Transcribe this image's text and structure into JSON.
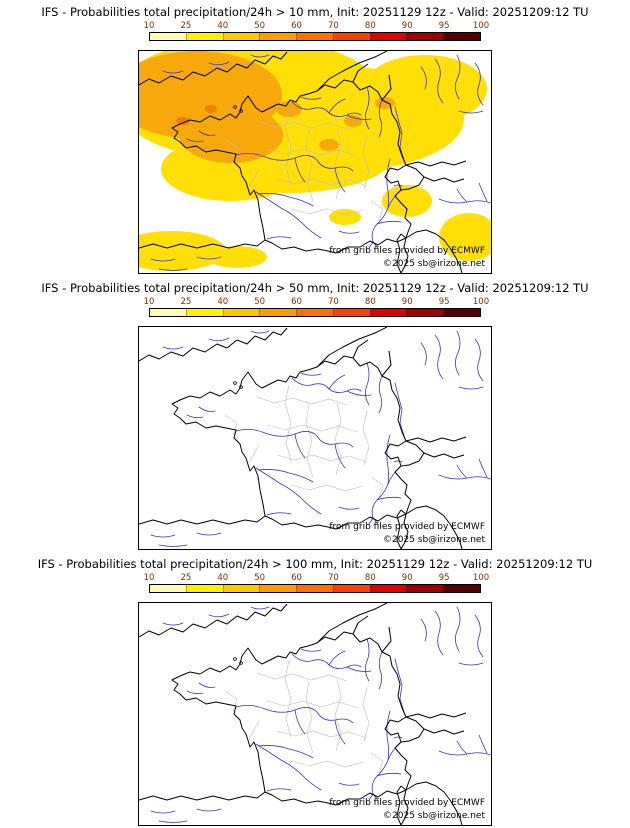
{
  "page": {
    "background": "#ffffff"
  },
  "panels": [
    {
      "title": "IFS - Probabilities total precipitation/24h > 10 mm, Init: 20251129 12z - Valid: 20251209:12 TU",
      "threshold": "> 10 mm",
      "attribution": "from grib files provided by ECMWF",
      "copyright": "©2025 sb@irizone.net",
      "overlay": true
    },
    {
      "title": "IFS - Probabilities total precipitation/24h > 50 mm, Init: 20251129 12z - Valid: 20251209:12 TU",
      "threshold": "> 50 mm",
      "attribution": "from grib files provided by ECMWF",
      "copyright": "©2025 sb@irizone.net",
      "overlay": false
    },
    {
      "title": "IFS - Probabilities total precipitation/24h > 100 mm, Init: 20251129 12z - Valid: 20251209:12 TU",
      "threshold": "> 100 mm",
      "attribution": "from grib files provided by ECMWF",
      "copyright": "©2025 sb@irizone.net",
      "overlay": false
    }
  ],
  "legend": {
    "labels": [
      "10",
      "25",
      "40",
      "50",
      "60",
      "70",
      "80",
      "90",
      "95",
      "100"
    ],
    "segment_colors": [
      "#ffffb2",
      "#fff000",
      "#ffc800",
      "#ff9c00",
      "#ff7000",
      "#ff4000",
      "#e00000",
      "#a00000",
      "#560000"
    ],
    "label_color": "#7d2f00"
  },
  "map": {
    "border_color": "#000000",
    "admin_color": "#bdbdbd",
    "river_color": "#3333cc",
    "prob_low_color": "#ffdf05",
    "prob_mid_color": "#f7a80a",
    "prob_high_color": "#ef8000"
  }
}
